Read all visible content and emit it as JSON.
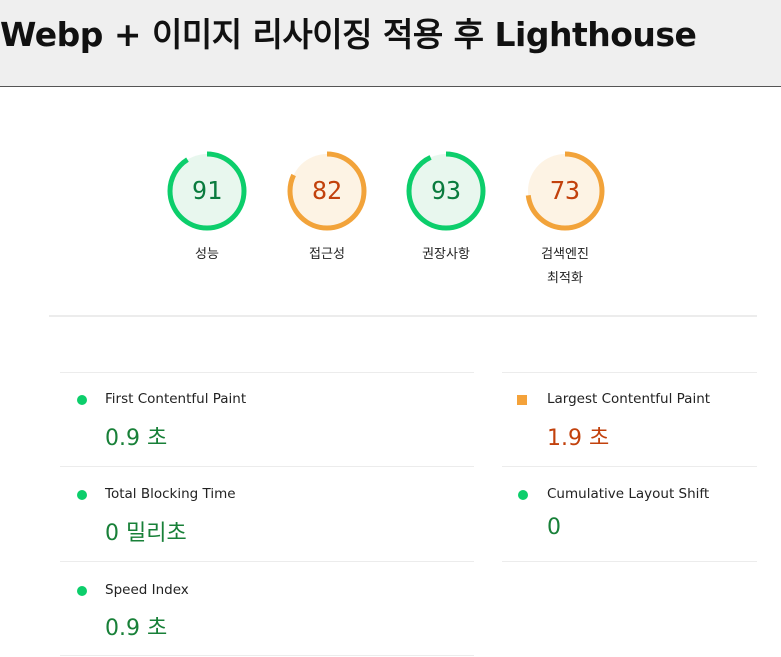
{
  "header": {
    "title": "Webp + 이미지 리사이징 적용 후 Lighthouse"
  },
  "gauges": [
    {
      "score": "91",
      "value": 91,
      "label": "성능",
      "color": "#0cce6b",
      "text_color": "#0a7b3e",
      "bg": "#e8f7ee"
    },
    {
      "score": "82",
      "value": 82,
      "label": "접근성",
      "color": "#f2a33a",
      "text_color": "#c2410c",
      "bg": "#fdf3e4"
    },
    {
      "score": "93",
      "value": 93,
      "label": "권장사항",
      "color": "#0cce6b",
      "text_color": "#0a7b3e",
      "bg": "#e8f7ee"
    },
    {
      "score": "73",
      "value": 73,
      "label_line1": "검색엔진",
      "label_line2": "최적화",
      "color": "#f2a33a",
      "text_color": "#c2410c",
      "bg": "#fdf3e4"
    }
  ],
  "metrics": {
    "fcp": {
      "name": "First Contentful Paint",
      "value": "0.9 초",
      "status": "good"
    },
    "lcp": {
      "name": "Largest Contentful Paint",
      "value": "1.9 초",
      "status": "average"
    },
    "tbt": {
      "name": "Total Blocking Time",
      "value": "0 밀리초",
      "status": "good"
    },
    "cls": {
      "name": "Cumulative Layout Shift",
      "value": "0",
      "status": "good"
    },
    "si": {
      "name": "Speed Index",
      "value": "0.9 초",
      "status": "good"
    }
  },
  "colors": {
    "good": "#0cce6b",
    "good_text": "#188038",
    "average": "#f4a23a",
    "average_text": "#c2410c"
  }
}
